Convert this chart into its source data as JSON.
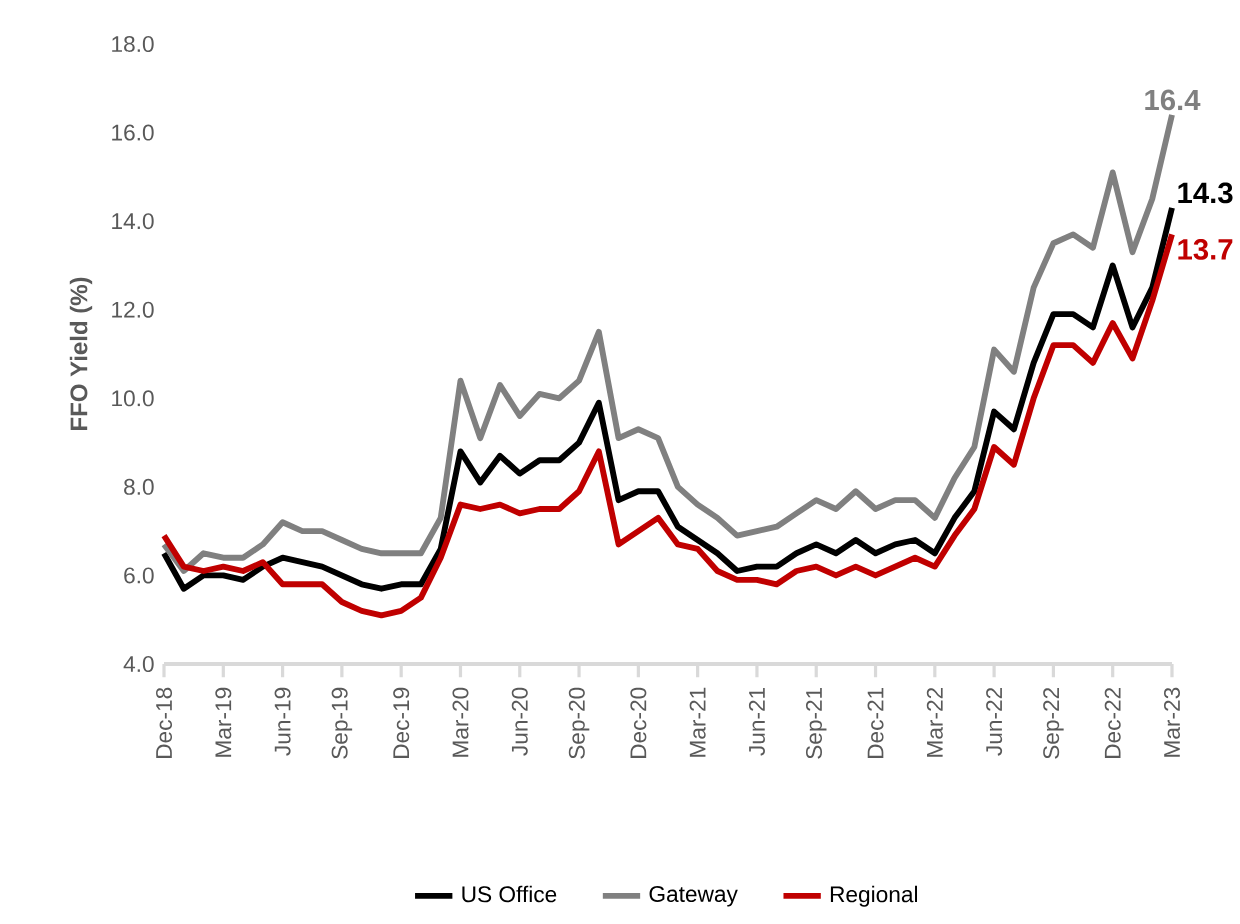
{
  "chart_data": {
    "type": "line",
    "ylabel": "FFO Yield (%)",
    "categories": [
      "Dec-18",
      null,
      null,
      "Mar-19",
      null,
      null,
      "Jun-19",
      null,
      null,
      "Sep-19",
      null,
      null,
      "Dec-19",
      null,
      null,
      "Mar-20",
      null,
      null,
      "Jun-20",
      null,
      null,
      "Sep-20",
      null,
      null,
      "Dec-20",
      null,
      null,
      "Mar-21",
      null,
      null,
      "Jun-21",
      null,
      null,
      "Sep-21",
      null,
      null,
      "Dec-21",
      null,
      null,
      "Mar-22",
      null,
      null,
      "Jun-22",
      null,
      null,
      "Sep-22",
      null,
      null,
      "Dec-22",
      null,
      null,
      "Mar-23"
    ],
    "series": [
      {
        "name": "US Office",
        "color": "#000000",
        "values": [
          6.5,
          5.7,
          6.0,
          6.0,
          5.9,
          6.2,
          6.4,
          6.3,
          6.2,
          6.0,
          5.8,
          5.7,
          5.8,
          5.8,
          6.6,
          8.8,
          8.1,
          8.7,
          8.3,
          8.6,
          8.6,
          9.0,
          9.9,
          7.7,
          7.9,
          7.9,
          7.1,
          6.8,
          6.5,
          6.1,
          6.2,
          6.2,
          6.5,
          6.7,
          6.5,
          6.8,
          6.5,
          6.7,
          6.8,
          6.5,
          7.3,
          7.9,
          9.7,
          9.3,
          10.8,
          11.9,
          11.9,
          11.6,
          13.0,
          11.6,
          12.5,
          14.3
        ],
        "value_labels": [
          null,
          null,
          null,
          null,
          null,
          null,
          null,
          null,
          null,
          null,
          null,
          null,
          null,
          null,
          null,
          null,
          null,
          null,
          null,
          null,
          null,
          null,
          null,
          null,
          null,
          null,
          null,
          null,
          null,
          null,
          null,
          null,
          null,
          null,
          null,
          null,
          null,
          null,
          null,
          null,
          null,
          null,
          null,
          null,
          null,
          null,
          null,
          null,
          null,
          null,
          null,
          "14.3"
        ]
      },
      {
        "name": "Gateway",
        "color": "#808080",
        "values": [
          6.7,
          6.1,
          6.5,
          6.4,
          6.4,
          6.7,
          7.2,
          7.0,
          7.0,
          6.8,
          6.6,
          6.5,
          6.5,
          6.5,
          7.3,
          10.4,
          9.1,
          10.3,
          9.6,
          10.1,
          10.0,
          10.4,
          11.5,
          9.1,
          9.3,
          9.1,
          8.0,
          7.6,
          7.3,
          6.9,
          7.0,
          7.1,
          7.4,
          7.7,
          7.5,
          7.9,
          7.5,
          7.7,
          7.7,
          7.3,
          8.2,
          8.9,
          11.1,
          10.6,
          12.5,
          13.5,
          13.7,
          13.4,
          15.1,
          13.3,
          14.5,
          16.4
        ],
        "value_labels": [
          null,
          null,
          null,
          null,
          null,
          null,
          null,
          null,
          null,
          null,
          null,
          null,
          null,
          null,
          null,
          null,
          null,
          null,
          null,
          null,
          null,
          null,
          null,
          null,
          null,
          null,
          null,
          null,
          null,
          null,
          null,
          null,
          null,
          null,
          null,
          null,
          null,
          null,
          null,
          null,
          null,
          null,
          null,
          null,
          null,
          null,
          null,
          null,
          null,
          null,
          null,
          "16.4"
        ]
      },
      {
        "name": "Regional",
        "color": "#c00000",
        "values": [
          6.9,
          6.2,
          6.1,
          6.2,
          6.1,
          6.3,
          5.8,
          5.8,
          5.8,
          5.4,
          5.2,
          5.1,
          5.2,
          5.5,
          6.4,
          7.6,
          7.5,
          7.6,
          7.4,
          7.5,
          7.5,
          7.9,
          8.8,
          6.7,
          7.0,
          7.3,
          6.7,
          6.6,
          6.1,
          5.9,
          5.9,
          5.8,
          6.1,
          6.2,
          6.0,
          6.2,
          6.0,
          6.2,
          6.4,
          6.2,
          6.9,
          7.5,
          8.9,
          8.5,
          10.0,
          11.2,
          11.2,
          10.8,
          11.7,
          10.9,
          12.2,
          13.7
        ],
        "value_labels": [
          null,
          null,
          null,
          null,
          null,
          null,
          null,
          null,
          null,
          null,
          null,
          null,
          null,
          null,
          null,
          null,
          null,
          null,
          null,
          null,
          null,
          null,
          null,
          null,
          null,
          null,
          null,
          null,
          null,
          null,
          null,
          null,
          null,
          null,
          null,
          null,
          null,
          null,
          null,
          null,
          null,
          null,
          null,
          null,
          null,
          null,
          null,
          null,
          null,
          null,
          null,
          "13.7"
        ]
      }
    ],
    "ylim": [
      4,
      18
    ],
    "yticks": [
      {
        "value": 4,
        "label": "4.0"
      },
      {
        "value": 6,
        "label": "6.0"
      },
      {
        "value": 8,
        "label": "8.0"
      },
      {
        "value": 10,
        "label": "10.0"
      },
      {
        "value": 12,
        "label": "12.0"
      },
      {
        "value": 14,
        "label": "14.0"
      },
      {
        "value": 16,
        "label": "16.0"
      },
      {
        "value": 18,
        "label": "18.0"
      }
    ],
    "legend": "bottom",
    "marker": "none",
    "line_style": "solid"
  }
}
